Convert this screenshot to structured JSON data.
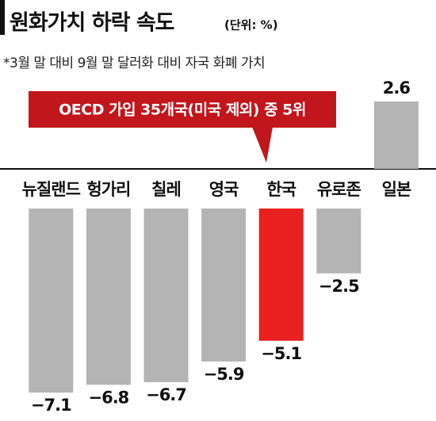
{
  "chart_data": {
    "type": "bar",
    "title": "원화가치 하락 속도",
    "unit": "(단위: %)",
    "subtitle": "*3월 말 대비 9월 말 달러화 대비 자국 화폐 가치",
    "annotation": "OECD 가입 35개국(미국 제외) 중 5위",
    "categories": [
      "뉴질랜드",
      "헝가리",
      "칠레",
      "영국",
      "한국",
      "유로존",
      "일본"
    ],
    "values": [
      -7.1,
      -6.8,
      -6.7,
      -5.9,
      -5.1,
      -2.5,
      2.6
    ],
    "value_labels": [
      "−7.1",
      "−6.8",
      "−6.7",
      "−5.9",
      "−5.1",
      "−2.5",
      "2.6"
    ],
    "colors": [
      "#b4b4b4",
      "#b4b4b4",
      "#b4b4b4",
      "#b4b4b4",
      "#e8201f",
      "#b4b4b4",
      "#b4b4b4"
    ]
  }
}
